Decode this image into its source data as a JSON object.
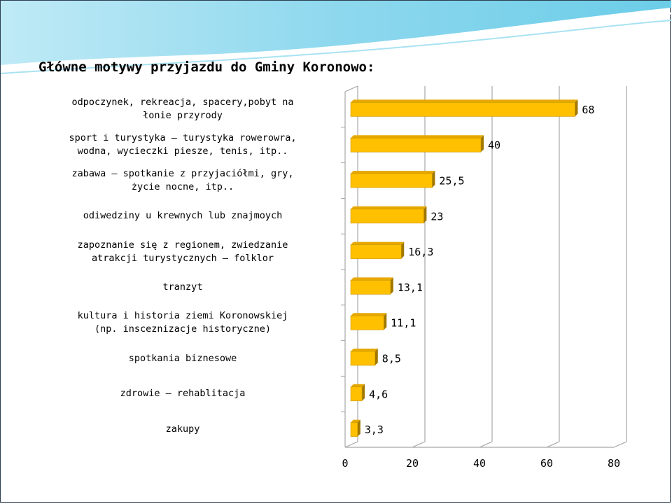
{
  "slide": {
    "title": "Główne motywy przyjazdu do Gminy Koronowo:"
  },
  "colors": {
    "bar_face": "#FFC000",
    "bar_top": "#E6A800",
    "bar_side": "#A07800",
    "grid": "#A6A6A6",
    "header_wave": "#8ED8EE"
  },
  "chart_data": {
    "type": "bar",
    "orientation": "horizontal",
    "categories": [
      "odpoczynek, rekreacja, spacery,pobyt na\nłonie przyrody",
      "sport i turystyka – turystyka rowerowra,\nwodna, wycieczki piesze, tenis, itp..",
      "zabawa – spotkanie z przyjaciółmi, gry,\nżycie nocne, itp..",
      "odiwedziny u krewnych lub znajmoych",
      "zapoznanie się z regionem, zwiedzanie\natrakcji turystycznych – folklor",
      "tranzyt",
      "kultura i historia ziemi Koronowskiej\n(np. insceznizacje historyczne)",
      "spotkania biznesowe",
      "zdrowie – rehablitacja",
      "zakupy"
    ],
    "values": [
      68,
      40,
      25.5,
      23,
      16.3,
      13.1,
      11.1,
      8.5,
      4.6,
      3.3
    ],
    "value_labels": [
      "68",
      "40",
      "25,5",
      "23",
      "16,3",
      "13,1",
      "11,1",
      "8,5",
      "4,6",
      "3,3"
    ],
    "xlim": [
      0,
      80
    ],
    "x_ticks": [
      "0",
      "20",
      "40",
      "60",
      "80"
    ],
    "x_tick_values": [
      0,
      20,
      40,
      60,
      80
    ],
    "grid": true,
    "style": "3d-bar"
  }
}
